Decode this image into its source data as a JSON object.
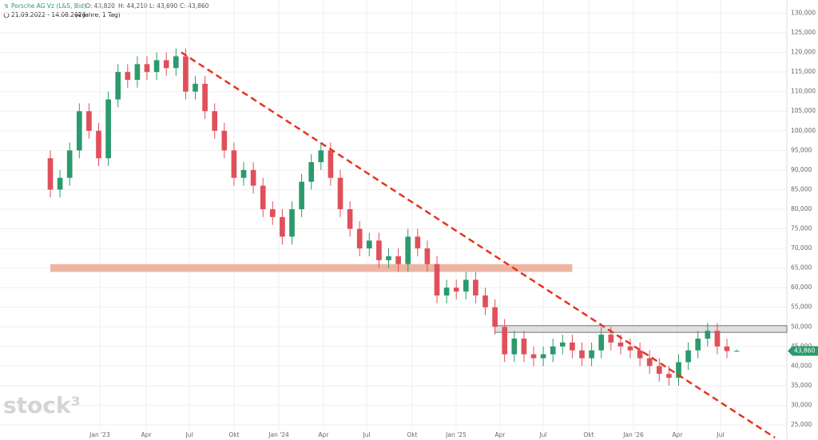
{
  "chart_data": {
    "type": "candlestick",
    "title": "Porsche AG Vz (L&S, Bid)",
    "ohlc_labels": [
      "O: 43,820",
      "H: 44,210",
      "L: 43,690",
      "C: 43,860"
    ],
    "subtitle": "21.09.2022 - 14.08.2026",
    "period": "(4 Jahre, 1 Tag)",
    "watermark": "stock³",
    "up_color": "#2b9a6c",
    "down_color": "#e0505a",
    "grid": true,
    "categories": [
      null,
      null,
      null,
      null,
      null,
      null,
      null,
      null,
      null,
      null,
      null,
      null,
      null,
      null,
      null,
      null,
      null,
      null,
      null,
      null,
      null,
      null,
      null,
      null,
      null,
      null,
      null,
      null,
      null,
      null,
      null,
      null,
      null,
      null,
      null,
      null,
      null,
      null,
      null,
      null,
      null,
      null,
      null,
      null,
      null,
      null,
      null,
      null,
      null,
      null,
      null,
      null,
      null,
      null,
      null,
      null,
      null,
      null,
      null,
      null,
      null,
      null,
      null,
      null,
      null,
      null,
      null,
      null,
      null,
      null,
      null,
      null
    ],
    "open": [
      93000,
      85000,
      88000,
      95000,
      105000,
      100000,
      93000,
      108000,
      115000,
      113000,
      117000,
      115000,
      118000,
      116000,
      119000,
      110000,
      112000,
      105000,
      100000,
      95000,
      88000,
      90000,
      86000,
      80000,
      78000,
      73000,
      80000,
      87000,
      92000,
      95000,
      88000,
      80000,
      75000,
      70000,
      72000,
      67000,
      68000,
      66000,
      73000,
      70000,
      66000,
      58000,
      60000,
      59000,
      62000,
      58000,
      55000,
      50000,
      43000,
      47000,
      43000,
      42000,
      43000,
      45000,
      46000,
      44000,
      42000,
      44000,
      48000,
      46000,
      45000,
      44000,
      42000,
      40000,
      38000,
      37000,
      41000,
      44000,
      47000,
      49000,
      45000,
      43820
    ],
    "high": [
      95000,
      90000,
      97000,
      107000,
      107000,
      102000,
      110000,
      117000,
      117000,
      119000,
      119000,
      120000,
      120000,
      121000,
      121000,
      114000,
      114000,
      107000,
      102000,
      97000,
      92000,
      92000,
      88000,
      82000,
      80000,
      82000,
      89000,
      94000,
      97000,
      97000,
      90000,
      82000,
      77000,
      74000,
      74000,
      70000,
      70000,
      75000,
      75000,
      72000,
      68000,
      62000,
      62000,
      64000,
      64000,
      60000,
      57000,
      52000,
      49000,
      49000,
      45000,
      45000,
      47000,
      48000,
      48000,
      46000,
      46000,
      50000,
      50000,
      48000,
      47000,
      46000,
      44000,
      42000,
      40000,
      43000,
      46000,
      49000,
      51000,
      51000,
      47000,
      44210
    ],
    "low": [
      83000,
      83000,
      86000,
      93000,
      98000,
      91000,
      91000,
      106000,
      111000,
      111000,
      113000,
      113000,
      114000,
      114000,
      108000,
      108000,
      103000,
      98000,
      93000,
      86000,
      86000,
      84000,
      78000,
      76000,
      71000,
      71000,
      78000,
      85000,
      90000,
      86000,
      78000,
      73000,
      68000,
      68000,
      65000,
      65000,
      64000,
      64000,
      68000,
      64000,
      56000,
      56000,
      57000,
      57000,
      56000,
      53000,
      48000,
      41000,
      41000,
      41000,
      40000,
      40000,
      41000,
      43000,
      42000,
      40000,
      40000,
      42000,
      44000,
      43000,
      42000,
      40000,
      38000,
      36000,
      35000,
      35000,
      39000,
      42000,
      45000,
      43000,
      42000,
      43690
    ],
    "close": [
      85000,
      88000,
      95000,
      105000,
      100000,
      93000,
      108000,
      115000,
      113000,
      117000,
      115000,
      118000,
      116000,
      119000,
      110000,
      112000,
      105000,
      100000,
      95000,
      88000,
      90000,
      86000,
      80000,
      78000,
      73000,
      80000,
      87000,
      92000,
      95000,
      88000,
      80000,
      75000,
      70000,
      72000,
      67000,
      68000,
      66000,
      73000,
      70000,
      66000,
      58000,
      60000,
      59000,
      62000,
      58000,
      55000,
      50000,
      43000,
      47000,
      43000,
      42000,
      43000,
      45000,
      46000,
      44000,
      42000,
      44000,
      48000,
      46000,
      45000,
      44000,
      42000,
      40000,
      38000,
      37000,
      41000,
      44000,
      47000,
      49000,
      45000,
      43820,
      43860
    ],
    "last_price": {
      "value": 43860,
      "label": "43,860"
    },
    "xlim": [
      -5.207,
      76.198
    ],
    "xticks": [
      {
        "value": 5.12,
        "label": "Jan '23"
      },
      {
        "value": 9.92,
        "label": "Apr"
      },
      {
        "value": 14.38,
        "label": "Jul"
      },
      {
        "value": 19.01,
        "label": "Okt"
      },
      {
        "value": 23.64,
        "label": "Jan '24"
      },
      {
        "value": 28.26,
        "label": "Apr"
      },
      {
        "value": 32.73,
        "label": "Jul"
      },
      {
        "value": 37.44,
        "label": "Okt"
      },
      {
        "value": 41.98,
        "label": "Jan '25"
      },
      {
        "value": 46.53,
        "label": "Apr"
      },
      {
        "value": 50.99,
        "label": "Jul"
      },
      {
        "value": 55.7,
        "label": "Okt"
      },
      {
        "value": 60.33,
        "label": "Jan '26"
      },
      {
        "value": 64.88,
        "label": "Apr"
      },
      {
        "value": 69.34,
        "label": "Jul"
      }
    ],
    "ylim": [
      21140,
      133360
    ],
    "yticks": [
      {
        "value": 25000,
        "label": "25,000"
      },
      {
        "value": 30000,
        "label": "30,000"
      },
      {
        "value": 35000,
        "label": "35,000"
      },
      {
        "value": 40000,
        "label": "40,000"
      },
      {
        "value": 45000,
        "label": "45,000"
      },
      {
        "value": 50000,
        "label": "50,000"
      },
      {
        "value": 55000,
        "label": "55,000"
      },
      {
        "value": 60000,
        "label": "60,000"
      },
      {
        "value": 65000,
        "label": "65,000"
      },
      {
        "value": 70000,
        "label": "70,000"
      },
      {
        "value": 75000,
        "label": "75,000"
      },
      {
        "value": 80000,
        "label": "80,000"
      },
      {
        "value": 85000,
        "label": "85,000"
      },
      {
        "value": 90000,
        "label": "90,000"
      },
      {
        "value": 95000,
        "label": "95,000"
      },
      {
        "value": 100000,
        "label": "100,000"
      },
      {
        "value": 105000,
        "label": "105,000"
      },
      {
        "value": 110000,
        "label": "110,000"
      },
      {
        "value": 115000,
        "label": "115,000"
      },
      {
        "value": 120000,
        "label": "120,000"
      },
      {
        "value": 125000,
        "label": "125,000"
      },
      {
        "value": 130000,
        "label": "130,000"
      }
    ],
    "trendline": {
      "x": [
        13.55,
        74.96
      ],
      "y": [
        120000,
        21750
      ],
      "color": "#e8331c"
    },
    "zones": [
      {
        "x": [
          0,
          54
        ],
        "y": [
          64000,
          66000
        ],
        "color": "#e8a48c"
      },
      {
        "x": [
          46,
          76.198
        ],
        "y": [
          48600,
          50300
        ],
        "color": "#d8d8d8"
      }
    ]
  }
}
